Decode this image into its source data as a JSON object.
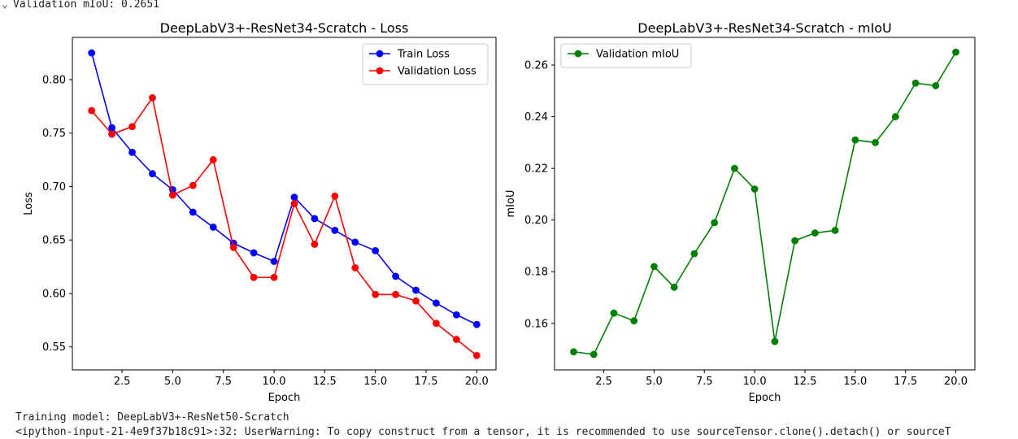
{
  "console": {
    "top_text": "Validation mIoU: 0.2651",
    "bottom_lines": [
      "Training model: DeepLabV3+-ResNet50-Scratch",
      "<ipython-input-21-4e9f37b18c91>:32: UserWarning: To copy construct from a tensor, it is recommended to use sourceTensor.clone().detach() or sourceT"
    ]
  },
  "chart_data": [
    {
      "type": "line",
      "title": "DeepLabV3+-ResNet34-Scratch - Loss",
      "xlabel": "Epoch",
      "ylabel": "Loss",
      "x": [
        1,
        2,
        3,
        4,
        5,
        6,
        7,
        8,
        9,
        10,
        11,
        12,
        13,
        14,
        15,
        16,
        17,
        18,
        19,
        20
      ],
      "xlim": [
        0.05,
        20.95
      ],
      "ylim": [
        0.5285,
        0.8395
      ],
      "xticks": [
        2.5,
        5.0,
        7.5,
        10.0,
        12.5,
        15.0,
        17.5,
        20.0
      ],
      "xtick_labels": [
        "2.5",
        "5.0",
        "7.5",
        "10.0",
        "12.5",
        "15.0",
        "17.5",
        "20.0"
      ],
      "yticks": [
        0.55,
        0.6,
        0.65,
        0.7,
        0.75,
        0.8
      ],
      "ytick_labels": [
        "0.55",
        "0.60",
        "0.65",
        "0.70",
        "0.75",
        "0.80"
      ],
      "grid": false,
      "legend_position": "upper-right",
      "series": [
        {
          "name": "Train Loss",
          "color": "#0000ff",
          "marker": "circle",
          "values": [
            0.825,
            0.755,
            0.732,
            0.712,
            0.697,
            0.676,
            0.662,
            0.647,
            0.638,
            0.63,
            0.69,
            0.67,
            0.659,
            0.648,
            0.64,
            0.616,
            0.603,
            0.591,
            0.58,
            0.571
          ]
        },
        {
          "name": "Validation Loss",
          "color": "#ff0000",
          "marker": "circle",
          "values": [
            0.771,
            0.749,
            0.756,
            0.783,
            0.692,
            0.701,
            0.725,
            0.643,
            0.615,
            0.615,
            0.684,
            0.646,
            0.691,
            0.624,
            0.599,
            0.599,
            0.593,
            0.572,
            0.557,
            0.542
          ]
        }
      ]
    },
    {
      "type": "line",
      "title": "DeepLabV3+-ResNet34-Scratch - mIoU",
      "xlabel": "Epoch",
      "ylabel": "mIoU",
      "x": [
        1,
        2,
        3,
        4,
        5,
        6,
        7,
        8,
        9,
        10,
        11,
        12,
        13,
        14,
        15,
        16,
        17,
        18,
        19,
        20
      ],
      "xlim": [
        0.05,
        20.95
      ],
      "ylim": [
        0.142,
        0.2707
      ],
      "xticks": [
        2.5,
        5.0,
        7.5,
        10.0,
        12.5,
        15.0,
        17.5,
        20.0
      ],
      "xtick_labels": [
        "2.5",
        "5.0",
        "7.5",
        "10.0",
        "12.5",
        "15.0",
        "17.5",
        "20.0"
      ],
      "yticks": [
        0.16,
        0.18,
        0.2,
        0.22,
        0.24,
        0.26
      ],
      "ytick_labels": [
        "0.16",
        "0.18",
        "0.20",
        "0.22",
        "0.24",
        "0.26"
      ],
      "grid": false,
      "legend_position": "upper-left",
      "series": [
        {
          "name": "Validation mIoU",
          "color": "#008000",
          "marker": "circle",
          "values": [
            0.149,
            0.148,
            0.164,
            0.161,
            0.182,
            0.174,
            0.187,
            0.199,
            0.22,
            0.212,
            0.153,
            0.192,
            0.195,
            0.196,
            0.231,
            0.23,
            0.24,
            0.253,
            0.252,
            0.265
          ]
        }
      ]
    }
  ]
}
